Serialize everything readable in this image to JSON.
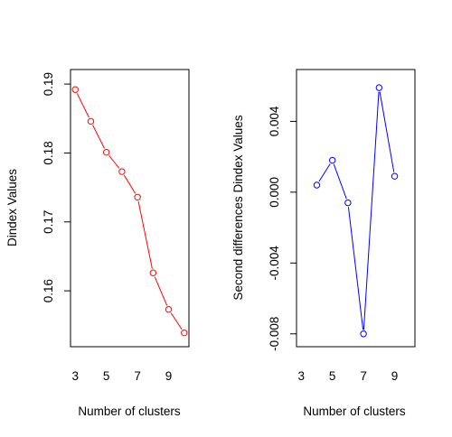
{
  "chart_data": [
    {
      "type": "line",
      "title": "",
      "xlabel": "Number of clusters",
      "ylabel": "Dindex Values",
      "xlim": [
        3,
        10
      ],
      "ylim": [
        0.1535,
        0.1905
      ],
      "x": [
        3,
        4,
        5,
        6,
        7,
        8,
        9,
        10
      ],
      "series": [
        {
          "values": [
            0.1892,
            0.1846,
            0.1801,
            0.1773,
            0.1736,
            0.1626,
            0.1573,
            0.1539
          ]
        }
      ],
      "x_ticks": [
        "3",
        "5",
        "7",
        "9"
      ],
      "y_ticks": [
        "0.16",
        "0.17",
        "0.18",
        "0.19"
      ],
      "grid": false,
      "color": "#ff0000"
    },
    {
      "type": "line",
      "title": "",
      "xlabel": "Number of clusters",
      "ylabel": "Second differences Dindex Values",
      "xlim": [
        3,
        10
      ],
      "ylim": [
        -0.0081,
        0.0063
      ],
      "x": [
        4,
        5,
        6,
        7,
        8,
        9
      ],
      "series": [
        {
          "values": [
            0.0004,
            0.0018,
            -0.0006,
            -0.008,
            0.0059,
            0.0009
          ]
        }
      ],
      "x_ticks": [
        "3",
        "5",
        "7",
        "9"
      ],
      "y_ticks": [
        "-0.008",
        "-0.004",
        "0.000",
        "0.004"
      ],
      "grid": false,
      "color": "#0000ff"
    }
  ]
}
